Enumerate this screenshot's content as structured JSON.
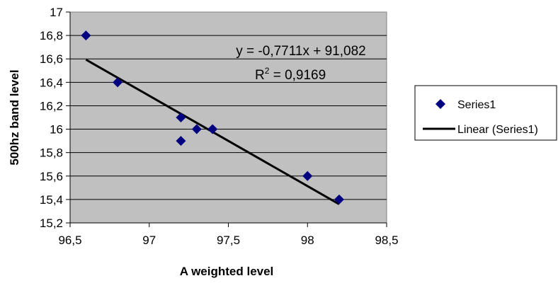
{
  "chart_data": {
    "type": "scatter",
    "title": "",
    "xlabel": "A weighted level",
    "ylabel": "500hz band level",
    "xlim": [
      96.5,
      98.5
    ],
    "ylim": [
      15.2,
      17
    ],
    "x_ticks": [
      96.5,
      97,
      97.5,
      98,
      98.5
    ],
    "y_ticks": [
      15.2,
      15.4,
      15.6,
      15.8,
      16,
      16.2,
      16.4,
      16.6,
      16.8,
      17
    ],
    "x_tick_labels": [
      "96,5",
      "97",
      "97,5",
      "98",
      "98,5"
    ],
    "y_tick_labels": [
      "15,2",
      "15,4",
      "15,6",
      "15,8",
      "16",
      "16,2",
      "16,4",
      "16,6",
      "16,8",
      "17"
    ],
    "plot_background": "#c0c0c0",
    "grid": "horizontal",
    "legend_position": "right",
    "series": [
      {
        "name": "Series1",
        "marker": "diamond",
        "color": "#000080",
        "x": [
          96.6,
          96.8,
          97.2,
          97.2,
          97.3,
          97.4,
          98.0,
          98.2
        ],
        "y": [
          16.8,
          16.4,
          16.1,
          15.9,
          16.0,
          16.0,
          15.6,
          15.4
        ]
      }
    ],
    "trendline": {
      "name": "Linear (Series1)",
      "type": "linear",
      "color": "#000000",
      "slope": -0.7711,
      "intercept": 91.082,
      "x_range": [
        96.6,
        98.2
      ]
    },
    "annotations": {
      "equation": "y = -0,7711x + 91,082",
      "r_squared_prefix": "R",
      "r_squared_sup": "2",
      "r_squared_value": " = 0,9169"
    }
  }
}
